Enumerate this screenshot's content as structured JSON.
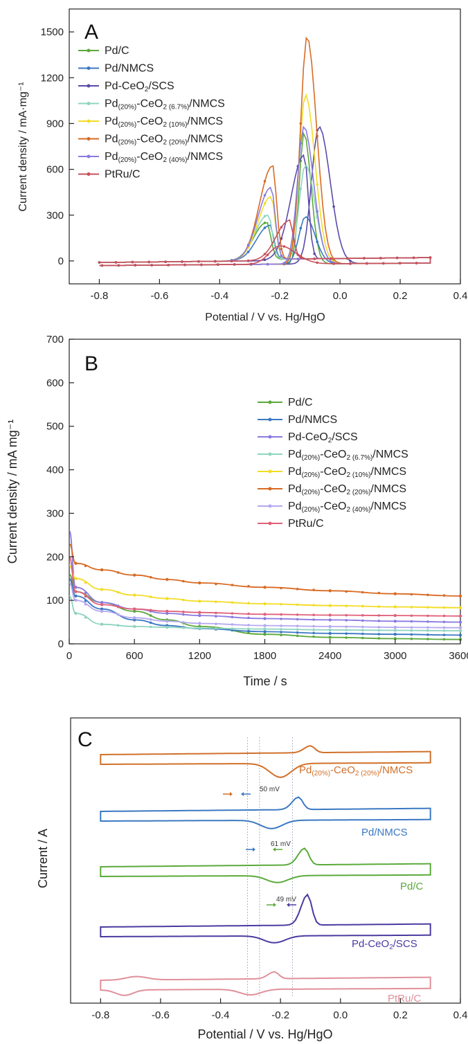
{
  "chart_data": [
    {
      "panel": "A",
      "type": "line",
      "xlabel": "Potential / V vs. Hg/HgO",
      "ylabel": "Current density / mA·mg⁻¹",
      "xlim": [
        -0.9,
        0.4
      ],
      "ylim": [
        -150,
        1650
      ],
      "xticks": [
        -0.8,
        -0.6,
        -0.4,
        -0.2,
        0.0,
        0.2,
        0.4
      ],
      "xtick_labels": [
        "-0.8",
        "-0.6",
        "-0.4",
        "-0.2",
        "0.0",
        "0.2",
        "0.4"
      ],
      "yticks": [
        0,
        300,
        600,
        900,
        1200,
        1500
      ],
      "ytick_labels": [
        "0",
        "300",
        "600",
        "900",
        "1200",
        "1500"
      ],
      "grid": false,
      "legend_position": "top-left",
      "series": [
        {
          "name": "Pd/C",
          "legend": [
            {
              "t": "Pd/C"
            }
          ],
          "color": "#5aa83a",
          "fwd_peak": [
            -0.245,
            250
          ],
          "rev_peak": [
            -0.12,
            860
          ],
          "rev_width": 0.022
        },
        {
          "name": "Pd/NMCS",
          "legend": [
            {
              "t": "Pd/NMCS"
            }
          ],
          "color": "#3a78c2",
          "fwd_peak": [
            -0.235,
            230
          ],
          "rev_peak": [
            -0.115,
            310
          ],
          "rev_width": 0.03
        },
        {
          "name": "Pd-CeO2/SCS",
          "legend": [
            {
              "t": "Pd-CeO"
            },
            {
              "t": "2",
              "sub": true
            },
            {
              "t": "/SCS"
            }
          ],
          "color": "#5a4aa8",
          "fwd_peak": [
            -0.12,
            690
          ],
          "rev_peak": [
            -0.07,
            900
          ],
          "rev_width": 0.035
        },
        {
          "name": "Pd(20%)-CeO2 (6.7%)/NMCS",
          "legend": [
            {
              "t": "Pd"
            },
            {
              "t": "(20%)",
              "sub": true
            },
            {
              "t": "-CeO"
            },
            {
              "t": "2 (6.7%)",
              "sub": true
            },
            {
              "t": "/NMCS"
            }
          ],
          "color": "#8fd4c0",
          "fwd_peak": [
            -0.24,
            300
          ],
          "rev_peak": [
            -0.115,
            650
          ],
          "rev_width": 0.03
        },
        {
          "name": "Pd(20%)-CeO2 (10%)/NMCS",
          "legend": [
            {
              "t": "Pd"
            },
            {
              "t": "(20%)",
              "sub": true
            },
            {
              "t": "-CeO"
            },
            {
              "t": "2 (10%)",
              "sub": true
            },
            {
              "t": "/NMCS"
            }
          ],
          "color": "#f2dc24",
          "fwd_peak": [
            -0.23,
            420
          ],
          "rev_peak": [
            -0.115,
            1110
          ],
          "rev_width": 0.03
        },
        {
          "name": "Pd(20%)-CeO2 (20%)/NMCS",
          "legend": [
            {
              "t": "Pd"
            },
            {
              "t": "(20%)",
              "sub": true
            },
            {
              "t": "-CeO"
            },
            {
              "t": "2 (20%)",
              "sub": true
            },
            {
              "t": "/NMCS"
            }
          ],
          "color": "#d86a22",
          "fwd_peak": [
            -0.225,
            620
          ],
          "rev_peak": [
            -0.11,
            1490
          ],
          "rev_width": 0.03
        },
        {
          "name": "Pd(20%)-CeO2 (40%)/NMCS",
          "legend": [
            {
              "t": "Pd"
            },
            {
              "t": "(20%)",
              "sub": true
            },
            {
              "t": "-CeO"
            },
            {
              "t": "2 (40%)",
              "sub": true
            },
            {
              "t": "/NMCS"
            }
          ],
          "color": "#8a7ae0",
          "fwd_peak": [
            -0.23,
            480
          ],
          "rev_peak": [
            -0.12,
            900
          ],
          "rev_width": 0.03
        },
        {
          "name": "PtRu/C",
          "legend": [
            {
              "t": "PtRu/C"
            }
          ],
          "color": "#c8505a",
          "fwd_peak": [
            -0.17,
            260
          ],
          "rev_peak": [
            -0.2,
            120
          ],
          "rev_width": 0.05
        }
      ]
    },
    {
      "panel": "B",
      "type": "line",
      "xlabel": "Time / s",
      "ylabel": "Current density / mA mg⁻¹",
      "xlim": [
        0,
        3600
      ],
      "ylim": [
        0,
        700
      ],
      "xticks": [
        0,
        600,
        1200,
        1800,
        2400,
        3000,
        3600
      ],
      "xtick_labels": [
        "0",
        "600",
        "1200",
        "1800",
        "2400",
        "3000",
        "3600"
      ],
      "yticks": [
        0,
        100,
        200,
        300,
        400,
        500,
        600,
        700
      ],
      "ytick_labels": [
        "0",
        "100",
        "200",
        "300",
        "400",
        "500",
        "600",
        "700"
      ],
      "grid": false,
      "legend_position": "center-right",
      "series": [
        {
          "name": "Pd/C",
          "legend": [
            {
              "t": "Pd/C"
            }
          ],
          "color": "#5aa83a",
          "x": [
            0,
            60,
            300,
            600,
            900,
            1200,
            1800,
            2400,
            3000,
            3600
          ],
          "y": [
            160,
            120,
            95,
            75,
            55,
            40,
            22,
            15,
            12,
            10
          ]
        },
        {
          "name": "Pd/NMCS",
          "legend": [
            {
              "t": "Pd/NMCS"
            }
          ],
          "color": "#3a78c2",
          "x": [
            0,
            60,
            300,
            600,
            900,
            1200,
            1800,
            2400,
            3000,
            3600
          ],
          "y": [
            150,
            110,
            80,
            55,
            42,
            35,
            28,
            24,
            22,
            20
          ]
        },
        {
          "name": "Pd-CeO2/SCS",
          "legend": [
            {
              "t": "Pd-CeO"
            },
            {
              "t": "2",
              "sub": true
            },
            {
              "t": "/SCS"
            }
          ],
          "color": "#8a7ae0",
          "x": [
            0,
            60,
            300,
            600,
            900,
            1200,
            1800,
            2400,
            3000,
            3600
          ],
          "y": [
            260,
            130,
            95,
            80,
            70,
            65,
            58,
            55,
            52,
            50
          ]
        },
        {
          "name": "Pd(20%)-CeO2 (6.7%)/NMCS",
          "legend": [
            {
              "t": "Pd"
            },
            {
              "t": "(20%)",
              "sub": true
            },
            {
              "t": "-CeO"
            },
            {
              "t": "2 (6.7%)",
              "sub": true
            },
            {
              "t": "/NMCS"
            }
          ],
          "color": "#8fd4c0",
          "x": [
            0,
            60,
            300,
            600,
            900,
            1200,
            1800,
            2400,
            3000,
            3600
          ],
          "y": [
            110,
            70,
            45,
            40,
            38,
            36,
            34,
            32,
            31,
            30
          ]
        },
        {
          "name": "Pd(20%)-CeO2 (10%)/NMCS",
          "legend": [
            {
              "t": "Pd"
            },
            {
              "t": "(20%)",
              "sub": true
            },
            {
              "t": "-CeO"
            },
            {
              "t": "2 (10%)",
              "sub": true
            },
            {
              "t": "/NMCS"
            }
          ],
          "color": "#f2dc24",
          "x": [
            0,
            60,
            300,
            600,
            900,
            1200,
            1800,
            2400,
            3000,
            3600
          ],
          "y": [
            180,
            150,
            125,
            112,
            104,
            98,
            92,
            88,
            85,
            83
          ]
        },
        {
          "name": "Pd(20%)-CeO2 (20%)/NMCS",
          "legend": [
            {
              "t": "Pd"
            },
            {
              "t": "(20%)",
              "sub": true
            },
            {
              "t": "-CeO"
            },
            {
              "t": "2 (20%)",
              "sub": true
            },
            {
              "t": "/NMCS"
            }
          ],
          "color": "#d86a22",
          "x": [
            0,
            60,
            300,
            600,
            900,
            1200,
            1800,
            2400,
            3000,
            3600
          ],
          "y": [
            230,
            185,
            170,
            158,
            148,
            140,
            130,
            122,
            115,
            110
          ]
        },
        {
          "name": "Pd(20%)-CeO2 (40%)/NMCS",
          "legend": [
            {
              "t": "Pd"
            },
            {
              "t": "(20%)",
              "sub": true
            },
            {
              "t": "-CeO"
            },
            {
              "t": "2 (40%)",
              "sub": true
            },
            {
              "t": "/NMCS"
            }
          ],
          "color": "#b4a8f0",
          "x": [
            0,
            60,
            300,
            600,
            900,
            1200,
            1800,
            2400,
            3000,
            3600
          ],
          "y": [
            140,
            100,
            75,
            60,
            52,
            47,
            42,
            40,
            38,
            37
          ]
        },
        {
          "name": "PtRu/C",
          "legend": [
            {
              "t": "PtRu/C"
            }
          ],
          "color": "#e0607a",
          "x": [
            0,
            60,
            300,
            600,
            900,
            1200,
            1800,
            2400,
            3000,
            3600
          ],
          "y": [
            200,
            120,
            90,
            80,
            75,
            72,
            68,
            66,
            65,
            64
          ]
        }
      ]
    },
    {
      "panel": "C",
      "type": "line",
      "xlabel": "Potential / V vs. Hg/HgO",
      "ylabel": "Current / A",
      "xlim": [
        -0.9,
        0.4
      ],
      "xticks": [
        -0.8,
        -0.6,
        -0.4,
        -0.2,
        0.0,
        0.2,
        0.4
      ],
      "xtick_labels": [
        "-0.8",
        "-0.6",
        "-0.4",
        "-0.2",
        "0.0",
        "0.2",
        "0.4"
      ],
      "curves": [
        {
          "label": [
            {
              "t": "Pd"
            },
            {
              "t": "(20%)",
              "sub": true
            },
            {
              "t": "-CeO"
            },
            {
              "t": "2 (20%)",
              "sub": true
            },
            {
              "t": "/NMCS"
            }
          ],
          "color": "#d0702a",
          "fwd_peak": -0.1,
          "rev_peak": -0.2
        },
        {
          "label": [
            {
              "t": "Pd/NMCS"
            }
          ],
          "color": "#3a78c2",
          "fwd_peak": -0.14,
          "rev_peak": -0.23
        },
        {
          "label": [
            {
              "t": "Pd/C"
            }
          ],
          "color": "#5aaa3a",
          "fwd_peak": -0.12,
          "rev_peak": -0.21
        },
        {
          "label": [
            {
              "t": "Pd-CeO"
            },
            {
              "t": "2",
              "sub": true
            },
            {
              "t": "/SCS"
            }
          ],
          "color": "#4a3aa0",
          "fwd_peak": -0.11,
          "rev_peak": -0.22
        },
        {
          "label": [
            {
              "t": "PtRu/C"
            }
          ],
          "color": "#e08f9a",
          "fwd_peak": -0.22,
          "rev_peak": -0.3
        }
      ],
      "annotations": [
        {
          "text": "50 mV",
          "x": -0.3
        },
        {
          "text": "61 mV",
          "x": -0.24
        },
        {
          "text": "49 mV",
          "x": -0.19
        }
      ],
      "vlines": [
        -0.31,
        -0.27,
        -0.16
      ]
    }
  ]
}
